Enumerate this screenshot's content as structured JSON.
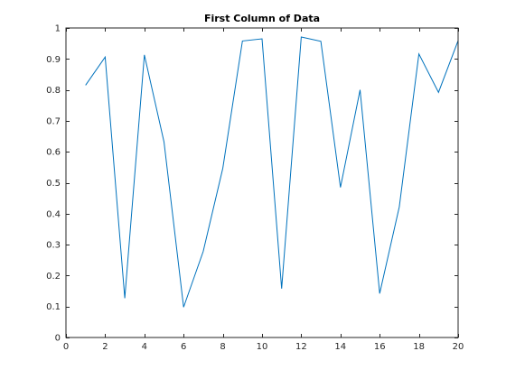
{
  "chart_data": {
    "type": "line",
    "title": "First Column of Data",
    "xlabel": "",
    "ylabel": "",
    "xlim": [
      0,
      20
    ],
    "ylim": [
      0,
      1
    ],
    "x_ticks": [
      0,
      2,
      4,
      6,
      8,
      10,
      12,
      14,
      16,
      18,
      20
    ],
    "y_ticks": [
      0,
      0.1,
      0.2,
      0.3,
      0.4,
      0.5,
      0.6,
      0.7,
      0.8,
      0.9,
      1
    ],
    "x_tick_labels": [
      "0",
      "2",
      "4",
      "6",
      "8",
      "10",
      "12",
      "14",
      "16",
      "18",
      "20"
    ],
    "y_tick_labels": [
      "0",
      "0.1",
      "0.2",
      "0.3",
      "0.4",
      "0.5",
      "0.6",
      "0.7",
      "0.8",
      "0.9",
      "1"
    ],
    "grid": false,
    "legend": "none",
    "series": [
      {
        "color": "#0072bd",
        "x": [
          1,
          2,
          3,
          4,
          5,
          6,
          7,
          8,
          9,
          10,
          11,
          12,
          13,
          14,
          15,
          16,
          17,
          18,
          19,
          20
        ],
        "values": [
          0.815,
          0.906,
          0.127,
          0.913,
          0.632,
          0.098,
          0.278,
          0.547,
          0.958,
          0.965,
          0.158,
          0.971,
          0.957,
          0.485,
          0.8,
          0.142,
          0.422,
          0.916,
          0.792,
          0.959
        ]
      }
    ]
  }
}
